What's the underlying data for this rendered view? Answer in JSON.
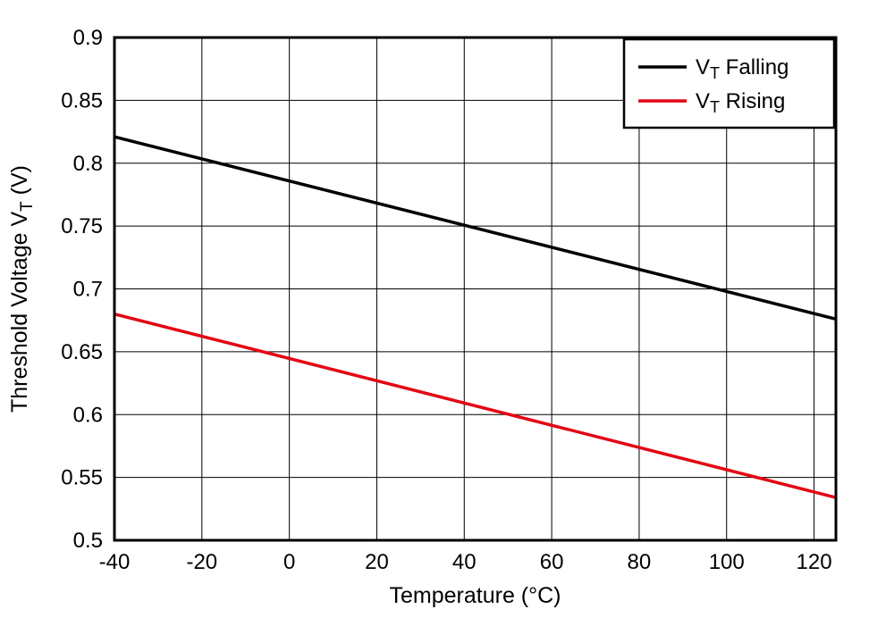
{
  "chart_data": {
    "type": "line",
    "title": "",
    "xlabel": "Temperature (°C)",
    "ylabel": {
      "pre": "Threshold Voltage V",
      "sub": "T",
      "post": " (V)"
    },
    "xlim": [
      -40,
      125
    ],
    "ylim": [
      0.5,
      0.9
    ],
    "grid": true,
    "legend_position": "top-right",
    "xticks": {
      "values": [
        -40,
        -20,
        0,
        20,
        40,
        60,
        80,
        100,
        120
      ],
      "labels": [
        "-40",
        "-20",
        "0",
        "20",
        "40",
        "60",
        "80",
        "100",
        "120"
      ]
    },
    "yticks": {
      "values": [
        0.5,
        0.55,
        0.6,
        0.65,
        0.7,
        0.75,
        0.8,
        0.85,
        0.9
      ],
      "labels": [
        "0.5",
        "0.55",
        "0.6",
        "0.65",
        "0.7",
        "0.75",
        "0.8",
        "0.85",
        "0.9"
      ]
    },
    "series": [
      {
        "name": "VT Falling",
        "label": {
          "pre": "V",
          "sub": "T",
          "post": " Falling"
        },
        "color": "#000000",
        "points": [
          [
            -40,
            0.821
          ],
          [
            125,
            0.676
          ]
        ]
      },
      {
        "name": "VT Rising",
        "label": {
          "pre": "V",
          "sub": "T",
          "post": " Rising"
        },
        "color": "#e30613",
        "points": [
          [
            -40,
            0.68
          ],
          [
            125,
            0.534
          ]
        ]
      }
    ],
    "colors": {
      "background": "#ffffff",
      "grid": "#000000",
      "border": "#000000"
    }
  }
}
